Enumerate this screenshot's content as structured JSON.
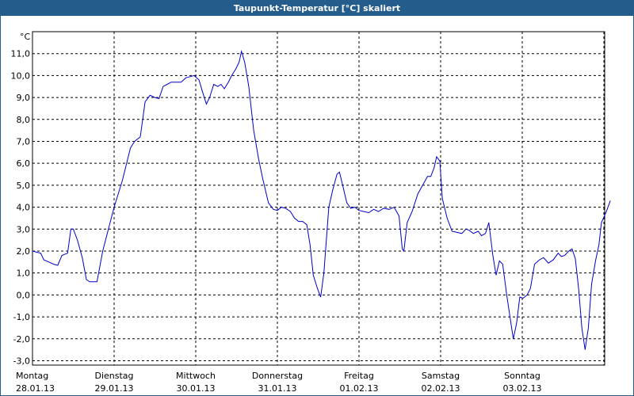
{
  "title": "Taupunkt-Temperatur [°C] skaliert",
  "colors": {
    "title_bg": "#245c8c",
    "line": "#0000cc",
    "grid": "#000000"
  },
  "chart_data": {
    "type": "line",
    "title": "Taupunkt-Temperatur [°C] skaliert",
    "ylabel": "°C",
    "ylim": [
      -3.2,
      12
    ],
    "yticks": [
      "11,0",
      "10,0",
      "9,0",
      "8,0",
      "7,0",
      "6,0",
      "5,0",
      "4,0",
      "3,0",
      "2,0",
      "1,0",
      "0,0",
      "-1,0",
      "-2,0",
      "-3,0"
    ],
    "ytick_values": [
      11,
      10,
      9,
      8,
      7,
      6,
      5,
      4,
      3,
      2,
      1,
      0,
      -1,
      -2,
      -3
    ],
    "xlim": [
      0,
      7
    ],
    "xticks": [
      {
        "day": "Montag",
        "date": "28.01.13"
      },
      {
        "day": "Dienstag",
        "date": "29.01.13"
      },
      {
        "day": "Mittwoch",
        "date": "30.01.13"
      },
      {
        "day": "Donnerstag",
        "date": "31.01.13"
      },
      {
        "day": "Freitag",
        "date": "01.02.13"
      },
      {
        "day": "Samstag",
        "date": "02.02.13"
      },
      {
        "day": "Sonntag",
        "date": "03.02.13"
      }
    ],
    "grid": true,
    "series": [
      {
        "points": [
          [
            0.0,
            2.0
          ],
          [
            0.05,
            1.95
          ],
          [
            0.1,
            1.9
          ],
          [
            0.14,
            1.6
          ],
          [
            0.2,
            1.5
          ],
          [
            0.26,
            1.4
          ],
          [
            0.31,
            1.35
          ],
          [
            0.36,
            1.8
          ],
          [
            0.43,
            1.9
          ],
          [
            0.47,
            3.0
          ],
          [
            0.5,
            3.0
          ],
          [
            0.55,
            2.5
          ],
          [
            0.61,
            1.7
          ],
          [
            0.66,
            0.7
          ],
          [
            0.7,
            0.6
          ],
          [
            0.76,
            0.6
          ],
          [
            0.79,
            0.6
          ],
          [
            0.86,
            2.0
          ],
          [
            0.93,
            3.0
          ],
          [
            1.0,
            4.0
          ],
          [
            1.1,
            5.2
          ],
          [
            1.2,
            6.7
          ],
          [
            1.25,
            7.0
          ],
          [
            1.32,
            7.2
          ],
          [
            1.38,
            8.8
          ],
          [
            1.44,
            9.1
          ],
          [
            1.5,
            9.0
          ],
          [
            1.55,
            8.95
          ],
          [
            1.6,
            9.5
          ],
          [
            1.65,
            9.6
          ],
          [
            1.7,
            9.7
          ],
          [
            1.75,
            9.7
          ],
          [
            1.82,
            9.7
          ],
          [
            1.88,
            9.9
          ],
          [
            1.93,
            9.95
          ],
          [
            1.98,
            10.0
          ],
          [
            2.04,
            9.8
          ],
          [
            2.08,
            9.3
          ],
          [
            2.13,
            8.7
          ],
          [
            2.17,
            9.0
          ],
          [
            2.22,
            9.6
          ],
          [
            2.27,
            9.5
          ],
          [
            2.31,
            9.6
          ],
          [
            2.35,
            9.4
          ],
          [
            2.4,
            9.7
          ],
          [
            2.44,
            10.0
          ],
          [
            2.49,
            10.3
          ],
          [
            2.53,
            10.6
          ],
          [
            2.56,
            11.1
          ],
          [
            2.6,
            10.6
          ],
          [
            2.65,
            9.5
          ],
          [
            2.71,
            7.5
          ],
          [
            2.77,
            6.2
          ],
          [
            2.82,
            5.3
          ],
          [
            2.89,
            4.2
          ],
          [
            2.95,
            3.9
          ],
          [
            3.0,
            3.85
          ],
          [
            3.05,
            4.0
          ],
          [
            3.1,
            3.95
          ],
          [
            3.16,
            3.8
          ],
          [
            3.21,
            3.5
          ],
          [
            3.26,
            3.35
          ],
          [
            3.31,
            3.35
          ],
          [
            3.36,
            3.2
          ],
          [
            3.4,
            2.3
          ],
          [
            3.44,
            0.9
          ],
          [
            3.49,
            0.3
          ],
          [
            3.53,
            -0.1
          ],
          [
            3.57,
            1.0
          ],
          [
            3.63,
            4.0
          ],
          [
            3.68,
            4.8
          ],
          [
            3.73,
            5.5
          ],
          [
            3.76,
            5.6
          ],
          [
            3.8,
            5.0
          ],
          [
            3.85,
            4.2
          ],
          [
            3.9,
            3.95
          ],
          [
            3.95,
            4.0
          ],
          [
            4.0,
            3.85
          ],
          [
            4.06,
            3.8
          ],
          [
            4.12,
            3.75
          ],
          [
            4.18,
            3.9
          ],
          [
            4.24,
            3.8
          ],
          [
            4.3,
            3.95
          ],
          [
            4.37,
            3.9
          ],
          [
            4.43,
            4.0
          ],
          [
            4.49,
            3.6
          ],
          [
            4.53,
            2.1
          ],
          [
            4.55,
            2.0
          ],
          [
            4.59,
            3.3
          ],
          [
            4.65,
            3.8
          ],
          [
            4.72,
            4.6
          ],
          [
            4.78,
            5.0
          ],
          [
            4.84,
            5.4
          ],
          [
            4.88,
            5.4
          ],
          [
            4.92,
            5.8
          ],
          [
            4.95,
            6.3
          ],
          [
            4.99,
            6.1
          ],
          [
            5.02,
            4.4
          ],
          [
            5.08,
            3.5
          ],
          [
            5.14,
            2.9
          ],
          [
            5.2,
            2.85
          ],
          [
            5.26,
            2.8
          ],
          [
            5.31,
            3.0
          ],
          [
            5.35,
            2.95
          ],
          [
            5.4,
            2.8
          ],
          [
            5.46,
            2.9
          ],
          [
            5.5,
            2.7
          ],
          [
            5.55,
            2.8
          ],
          [
            5.59,
            3.3
          ],
          [
            5.64,
            1.8
          ],
          [
            5.68,
            0.9
          ],
          [
            5.72,
            1.55
          ],
          [
            5.76,
            1.4
          ],
          [
            5.81,
            0.0
          ],
          [
            5.85,
            -1.0
          ],
          [
            5.89,
            -2.0
          ],
          [
            5.93,
            -1.3
          ],
          [
            5.97,
            -0.1
          ],
          [
            6.01,
            -0.15
          ],
          [
            6.06,
            0.0
          ],
          [
            6.1,
            0.3
          ],
          [
            6.15,
            1.4
          ],
          [
            6.21,
            1.6
          ],
          [
            6.26,
            1.7
          ],
          [
            6.32,
            1.45
          ],
          [
            6.38,
            1.6
          ],
          [
            6.44,
            1.9
          ],
          [
            6.48,
            1.75
          ],
          [
            6.52,
            1.8
          ],
          [
            6.57,
            2.0
          ],
          [
            6.61,
            2.1
          ],
          [
            6.65,
            1.65
          ],
          [
            6.69,
            0.3
          ],
          [
            6.73,
            -1.5
          ],
          [
            6.77,
            -2.5
          ],
          [
            6.81,
            -1.5
          ],
          [
            6.85,
            0.5
          ],
          [
            6.9,
            1.6
          ],
          [
            6.94,
            2.3
          ],
          [
            6.97,
            3.3
          ],
          [
            7.03,
            3.8
          ],
          [
            7.08,
            4.3
          ]
        ]
      }
    ]
  }
}
